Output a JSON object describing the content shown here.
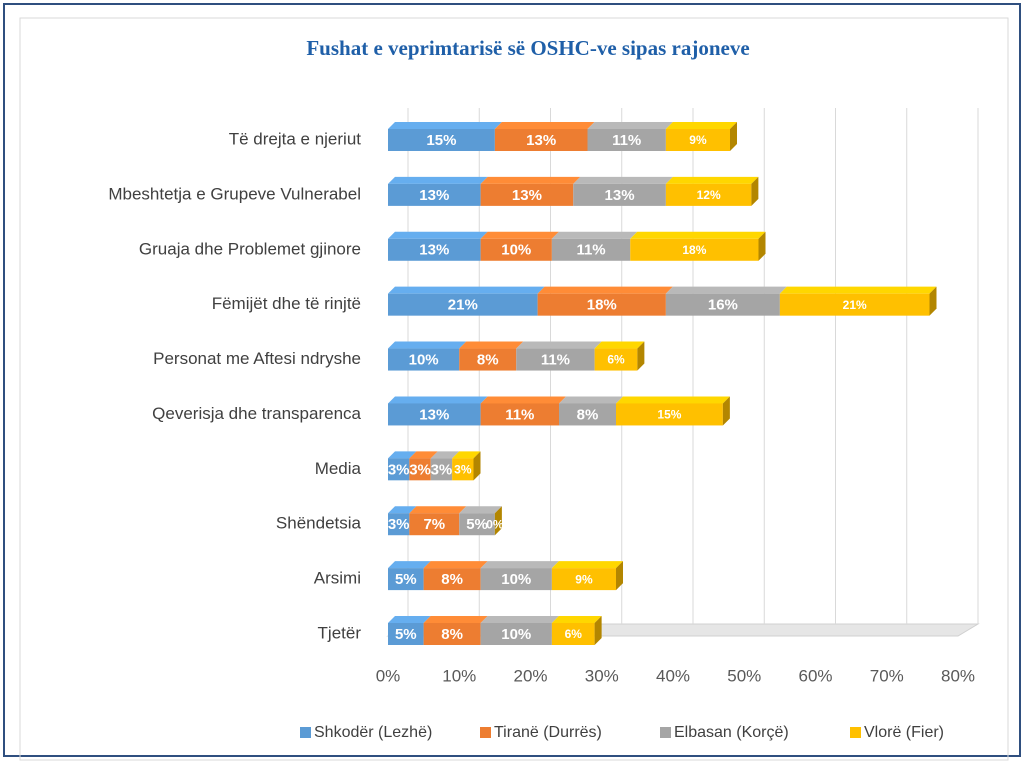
{
  "chart_data": {
    "type": "stacked-bar-horizontal",
    "title": "Fushat e veprimtarisë së OSHC-ve sipas rajoneve",
    "categories": [
      "Të drejta e njeriut",
      "Mbeshtetja e Grupeve Vulnerabel",
      "Gruaja dhe Problemet gjinore",
      "Fëmijët dhe të rinjtë",
      "Personat me Aftesi ndryshe",
      "Qeverisja dhe transparenca",
      "Media",
      "Shëndetsia",
      "Arsimi",
      "Tjetër"
    ],
    "series": [
      {
        "name": "Shkodër (Lezhë)",
        "color": "#5b9bd5",
        "values": [
          15,
          13,
          13,
          21,
          10,
          13,
          3,
          3,
          5,
          5
        ],
        "value_labels": [
          "15%",
          "13%",
          "13%",
          "21%",
          "10%",
          "13%",
          "3%",
          "3%",
          "5%",
          "5%"
        ]
      },
      {
        "name": "Tiranë (Durrës)",
        "color": "#ed7d31",
        "values": [
          13,
          13,
          10,
          18,
          8,
          11,
          3,
          7,
          8,
          8
        ],
        "value_labels": [
          "13%",
          "13%",
          "10%",
          "18%",
          "8%",
          "11%",
          "3%",
          "7%",
          "8%",
          "8%"
        ]
      },
      {
        "name": "Elbasan (Korçë)",
        "color": "#a5a5a5",
        "values": [
          11,
          13,
          11,
          16,
          11,
          8,
          3,
          5,
          10,
          10
        ],
        "value_labels": [
          "11%",
          "13%",
          "11%",
          "16%",
          "11%",
          "8%",
          "3%",
          "5%",
          "10%",
          "10%"
        ]
      },
      {
        "name": "Vlorë (Fier)",
        "color": "#ffc000",
        "values": [
          9,
          12,
          18,
          21,
          6,
          15,
          3,
          0,
          9,
          6
        ],
        "value_labels": [
          "9%",
          "12%",
          "18%",
          "21%",
          "6%",
          "15%",
          "3%",
          "0%",
          "9%",
          "6%"
        ]
      }
    ],
    "xlim": [
      0,
      80
    ],
    "xticks": [
      {
        "value": 0,
        "label": "0%"
      },
      {
        "value": 10,
        "label": "10%"
      },
      {
        "value": 20,
        "label": "20%"
      },
      {
        "value": 30,
        "label": "30%"
      },
      {
        "value": 40,
        "label": "40%"
      },
      {
        "value": 50,
        "label": "50%"
      },
      {
        "value": 60,
        "label": "60%"
      },
      {
        "value": 70,
        "label": "70%"
      },
      {
        "value": 80,
        "label": "80%"
      }
    ],
    "grid": true,
    "legend": "bottom"
  }
}
